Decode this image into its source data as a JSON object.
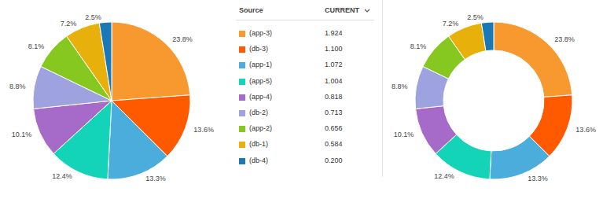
{
  "chart_data": [
    {
      "type": "pie",
      "categories": [
        "(app-3)",
        "(db-3)",
        "(app-1)",
        "(app-5)",
        "(app-4)",
        "(db-2)",
        "(app-2)",
        "(db-1)",
        "(db-4)"
      ],
      "values": [
        23.8,
        13.6,
        13.3,
        12.4,
        10.1,
        8.8,
        8.1,
        7.2,
        2.5
      ],
      "value_labels": [
        "23.8%",
        "13.6%",
        "13.3%",
        "12.4%",
        "10.1%",
        "8.8%",
        "8.1%",
        "7.2%",
        "2.5%"
      ],
      "colors": [
        "#f7992f",
        "#ff5a00",
        "#4aaddb",
        "#13d4b8",
        "#a66ac8",
        "#9ea3df",
        "#86c820",
        "#e8b00b",
        "#1a79b5"
      ],
      "data_labels": true
    },
    {
      "type": "donut",
      "categories": [
        "(app-3)",
        "(db-3)",
        "(app-1)",
        "(app-5)",
        "(app-4)",
        "(db-2)",
        "(app-2)",
        "(db-1)",
        "(db-4)"
      ],
      "values": [
        23.8,
        13.6,
        13.3,
        12.4,
        10.1,
        8.8,
        8.1,
        7.2,
        2.5
      ],
      "value_labels": [
        "23.8%",
        "13.6%",
        "13.3%",
        "12.4%",
        "10.1%",
        "8.8%",
        "8.1%",
        "7.2%",
        "2.5%"
      ],
      "colors": [
        "#f7992f",
        "#ff5a00",
        "#4aaddb",
        "#13d4b8",
        "#a66ac8",
        "#9ea3df",
        "#86c820",
        "#e8b00b",
        "#1a79b5"
      ],
      "data_labels": true
    }
  ],
  "table": {
    "header": [
      "Source",
      "CURRENT"
    ],
    "rows": [
      [
        "(app-3)",
        "1.924"
      ],
      [
        "(db-3)",
        "1.100"
      ],
      [
        "(app-1)",
        "1.072"
      ],
      [
        "(app-5)",
        "1.004"
      ],
      [
        "(app-4)",
        "0.818"
      ],
      [
        "(db-2)",
        "0.713"
      ],
      [
        "(app-2)",
        "0.656"
      ],
      [
        "(db-1)",
        "0.584"
      ],
      [
        "(db-4)",
        "0.200"
      ]
    ],
    "colors": [
      "#f7992f",
      "#ff5a00",
      "#4aaddb",
      "#13d4b8",
      "#a66ac8",
      "#9ea3df",
      "#86c820",
      "#e8b00b",
      "#1a79b5"
    ]
  }
}
